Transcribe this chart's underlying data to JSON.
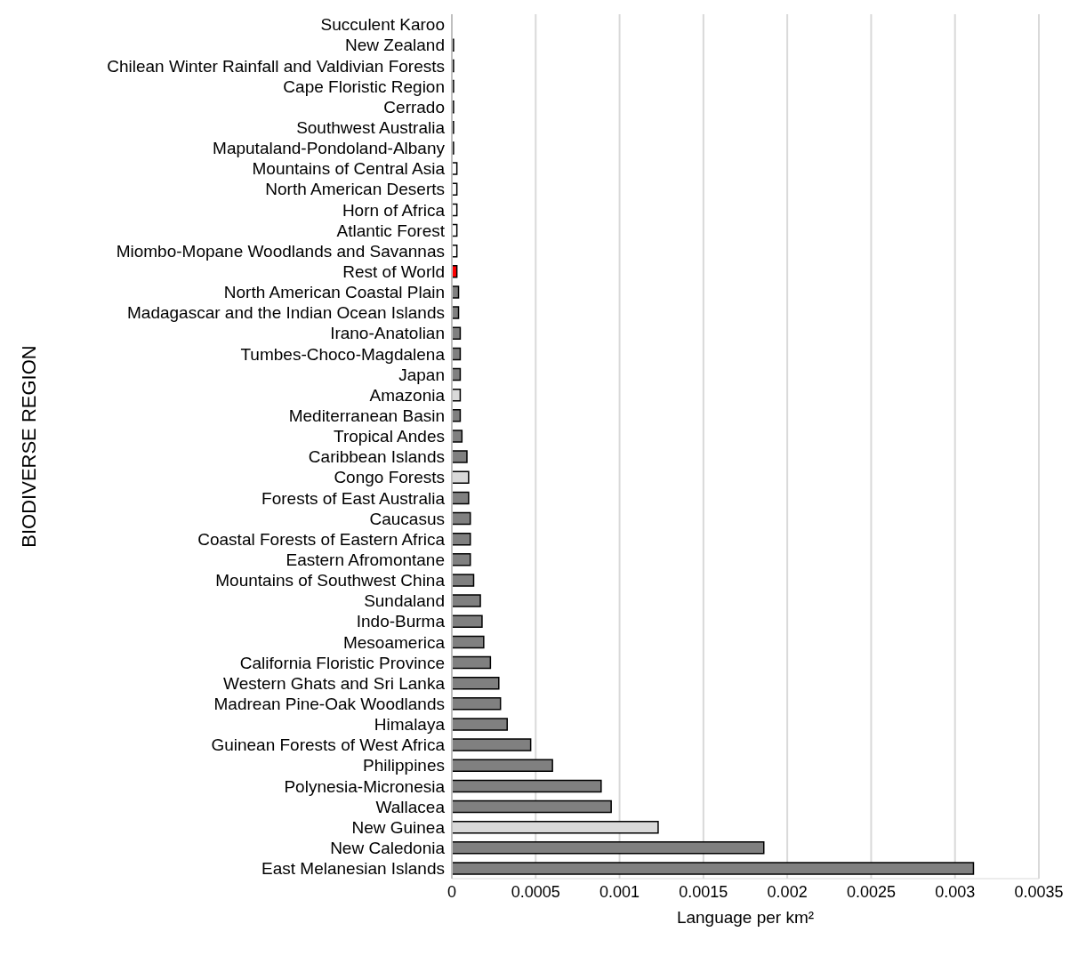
{
  "chart_data": {
    "type": "bar",
    "orientation": "horizontal",
    "xlabel": "Language per km²",
    "ylabel": "BIODIVERSE REGION",
    "categories": [
      "Succulent Karoo",
      "New Zealand",
      "Chilean Winter Rainfall and Valdivian Forests",
      "Cape Floristic Region",
      "Cerrado",
      "Southwest Australia",
      "Maputaland-Pondoland-Albany",
      "Mountains of Central Asia",
      "North American Deserts",
      "Horn of Africa",
      "Atlantic Forest",
      "Miombo-Mopane Woodlands and Savannas",
      "Rest of World",
      "North American Coastal Plain",
      "Madagascar and the Indian Ocean Islands",
      "Irano-Anatolian",
      "Tumbes-Choco-Magdalena",
      "Japan",
      "Amazonia",
      "Mediterranean Basin",
      "Tropical Andes",
      "Caribbean Islands",
      "Congo Forests",
      "Forests of East Australia",
      "Caucasus",
      "Coastal Forests of Eastern Africa",
      "Eastern Afromontane",
      "Mountains of Southwest China",
      "Sundaland",
      "Indo-Burma",
      "Mesoamerica",
      "California Floristic Province",
      "Western Ghats and Sri Lanka",
      "Madrean Pine-Oak Woodlands",
      "Himalaya",
      "Guinean Forests of West Africa",
      "Philippines",
      "Polynesia-Micronesia",
      "Wallacea",
      "New Guinea",
      "New Caledonia",
      "East Melanesian Islands"
    ],
    "values": [
      0,
      1e-05,
      1e-05,
      1e-05,
      1e-05,
      1e-05,
      1e-05,
      3e-05,
      3e-05,
      3e-05,
      3e-05,
      3e-05,
      3e-05,
      4e-05,
      4e-05,
      5e-05,
      5e-05,
      5e-05,
      5e-05,
      5e-05,
      6e-05,
      9e-05,
      0.0001,
      0.0001,
      0.00011,
      0.00011,
      0.00011,
      0.00013,
      0.00017,
      0.00018,
      0.00019,
      0.00023,
      0.00028,
      0.00029,
      0.00033,
      0.00047,
      0.0006,
      0.00089,
      0.00095,
      0.00123,
      0.00186,
      0.00311
    ],
    "colors": [
      "#ffffff",
      "#ffffff",
      "#ffffff",
      "#ffffff",
      "#ffffff",
      "#ffffff",
      "#ffffff",
      "#ffffff",
      "#ffffff",
      "#ffffff",
      "#ffffff",
      "#ffffff",
      "#ff0000",
      "#808080",
      "#808080",
      "#808080",
      "#808080",
      "#808080",
      "#d9d9d9",
      "#808080",
      "#808080",
      "#808080",
      "#d9d9d9",
      "#808080",
      "#808080",
      "#808080",
      "#808080",
      "#808080",
      "#808080",
      "#808080",
      "#808080",
      "#808080",
      "#808080",
      "#808080",
      "#808080",
      "#808080",
      "#808080",
      "#808080",
      "#808080",
      "#d9d9d9",
      "#808080",
      "#808080"
    ],
    "xlim": [
      0,
      0.0035
    ],
    "xticks": [
      0,
      0.0005,
      0.001,
      0.0015,
      0.002,
      0.0025,
      0.003,
      0.0035
    ],
    "grid": "x",
    "legend": false
  }
}
